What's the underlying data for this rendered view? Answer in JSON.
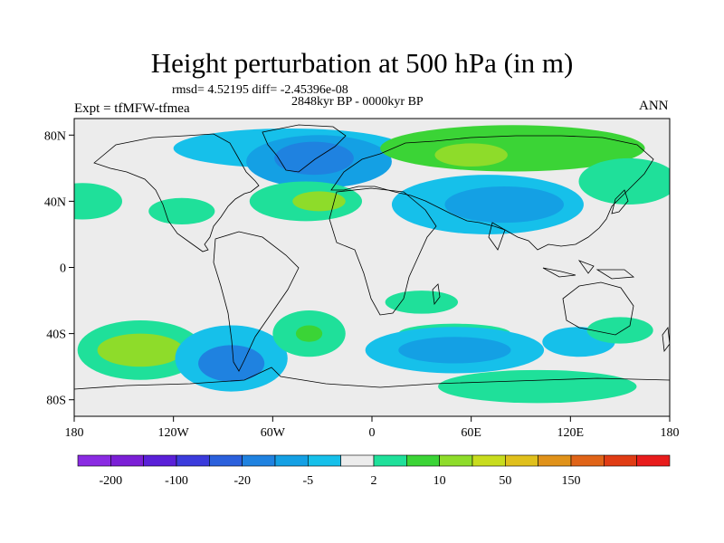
{
  "title": "Height perturbation at 500 hPa (in m)",
  "stats_line": "rmsd= 4.52195 diff= -2.45396e-08",
  "period_line": "2848kyr BP - 0000kyr BP",
  "experiment_label": "Expt = tfMFW-tfmea",
  "season_label": "ANN",
  "map": {
    "projection": "cylindrical-equidistant",
    "lon_range": [
      -180,
      180
    ],
    "lat_range": [
      -90,
      90
    ],
    "coastlines": true,
    "lat_tick_labels": [
      {
        "value": 80,
        "label": "80N"
      },
      {
        "value": 40,
        "label": "40N"
      },
      {
        "value": 0,
        "label": "0"
      },
      {
        "value": -40,
        "label": "40S"
      },
      {
        "value": -80,
        "label": "80S"
      }
    ],
    "lon_tick_labels": [
      {
        "value": -180,
        "label": "180"
      },
      {
        "value": -120,
        "label": "120W"
      },
      {
        "value": -60,
        "label": "60W"
      },
      {
        "value": 0,
        "label": "0"
      },
      {
        "value": 60,
        "label": "60E"
      },
      {
        "value": 120,
        "label": "120E"
      },
      {
        "value": 180,
        "label": "180"
      }
    ]
  },
  "colorbar": {
    "colors": [
      "#8a2be2",
      "#7b1fd6",
      "#5a20d8",
      "#3b3bdc",
      "#2b60dc",
      "#1f82e0",
      "#14a0e4",
      "#16c0ea",
      "#ececec",
      "#1fe09a",
      "#3bd436",
      "#8edc2a",
      "#c8dc1e",
      "#e0c01c",
      "#e0921a",
      "#e06418",
      "#e03c14",
      "#e81c1c"
    ],
    "labels": [
      "-200",
      "-100",
      "-20",
      "-5",
      "2",
      "10",
      "50",
      "150"
    ]
  },
  "regions": [
    {
      "lon": -50,
      "lat": 72,
      "rx": 70,
      "ry": 12,
      "level": 7
    },
    {
      "lon": -32,
      "lat": 64,
      "rx": 44,
      "ry": 16,
      "level": 6
    },
    {
      "lon": -35,
      "lat": 66,
      "rx": 24,
      "ry": 10,
      "level": 5
    },
    {
      "lon": 85,
      "lat": 72,
      "rx": 80,
      "ry": 14,
      "level": 10
    },
    {
      "lon": 60,
      "lat": 68,
      "rx": 22,
      "ry": 7,
      "level": 11
    },
    {
      "lon": 155,
      "lat": 52,
      "rx": 30,
      "ry": 14,
      "level": 9
    },
    {
      "lon": 70,
      "lat": 38,
      "rx": 58,
      "ry": 18,
      "level": 7
    },
    {
      "lon": 80,
      "lat": 38,
      "rx": 36,
      "ry": 11,
      "level": 6
    },
    {
      "lon": -40,
      "lat": 40,
      "rx": 34,
      "ry": 12,
      "level": 9
    },
    {
      "lon": -32,
      "lat": 40,
      "rx": 16,
      "ry": 6,
      "level": 11
    },
    {
      "lon": -175,
      "lat": 40,
      "rx": 24,
      "ry": 11,
      "level": 9
    },
    {
      "lon": -115,
      "lat": 34,
      "rx": 20,
      "ry": 8,
      "level": 9
    },
    {
      "lon": 50,
      "lat": -40,
      "rx": 34,
      "ry": 6,
      "level": 9
    },
    {
      "lon": -140,
      "lat": -50,
      "rx": 38,
      "ry": 18,
      "level": 9
    },
    {
      "lon": -140,
      "lat": -50,
      "rx": 26,
      "ry": 10,
      "level": 11
    },
    {
      "lon": -85,
      "lat": -55,
      "rx": 34,
      "ry": 20,
      "level": 7
    },
    {
      "lon": -85,
      "lat": -58,
      "rx": 20,
      "ry": 11,
      "level": 5
    },
    {
      "lon": 50,
      "lat": -50,
      "rx": 54,
      "ry": 14,
      "level": 7
    },
    {
      "lon": 50,
      "lat": -50,
      "rx": 34,
      "ry": 8,
      "level": 6
    },
    {
      "lon": -38,
      "lat": -40,
      "rx": 22,
      "ry": 14,
      "level": 9
    },
    {
      "lon": -38,
      "lat": -40,
      "rx": 8,
      "ry": 5,
      "level": 10
    },
    {
      "lon": 30,
      "lat": -21,
      "rx": 22,
      "ry": 7,
      "level": 9
    },
    {
      "lon": 125,
      "lat": -45,
      "rx": 22,
      "ry": 9,
      "level": 7
    },
    {
      "lon": 150,
      "lat": -38,
      "rx": 20,
      "ry": 8,
      "level": 9
    },
    {
      "lon": 100,
      "lat": -72,
      "rx": 60,
      "ry": 10,
      "level": 9
    }
  ]
}
